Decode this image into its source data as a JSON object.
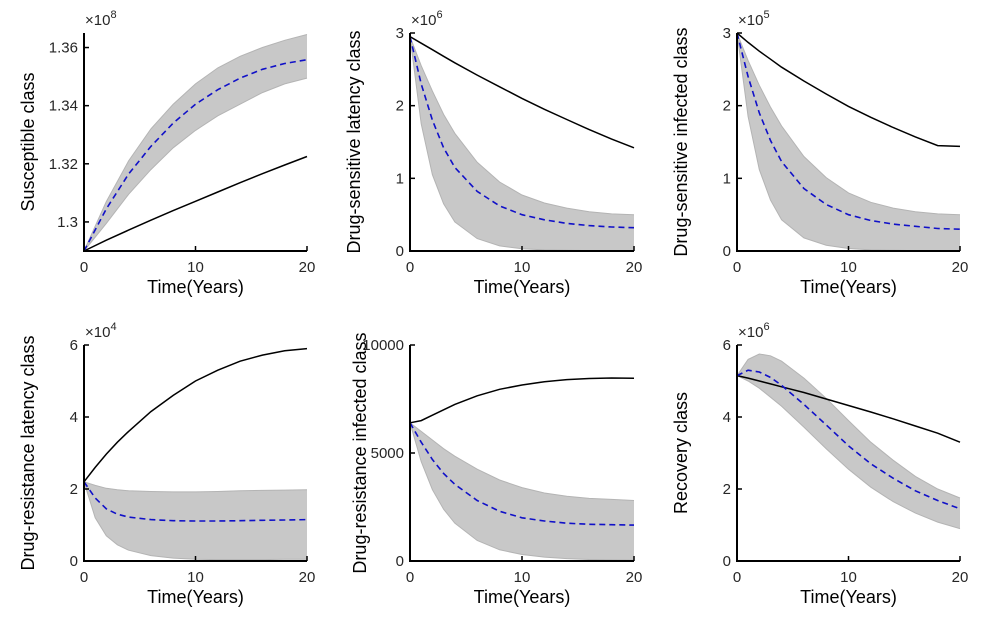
{
  "colors": {
    "band": "#c8c8c8",
    "band_edge": "#b4b4b4",
    "mean": "#1010c8",
    "baseline": "#000000",
    "axis": "#000000",
    "text": "#262626"
  },
  "chart_data": [
    {
      "type": "line",
      "xlabel": "Time(Years)",
      "ylabel": "Susceptible class",
      "xlim": [
        0,
        20
      ],
      "ylim": [
        1.29,
        1.365
      ],
      "xticks": [
        0,
        10,
        20
      ],
      "xtick_labels": [
        "0",
        "10",
        "20"
      ],
      "yticks": [
        1.3,
        1.32,
        1.34,
        1.36
      ],
      "ytick_labels": [
        "1.3",
        "1.32",
        "1.34",
        "1.36"
      ],
      "multiplier_base": "×10",
      "multiplier_exp": "8",
      "x": [
        0,
        2,
        4,
        6,
        8,
        10,
        12,
        14,
        16,
        18,
        20
      ],
      "series": [
        {
          "role": "baseline",
          "style": "solid-black",
          "values": [
            1.29,
            1.2937,
            1.2972,
            1.3006,
            1.3039,
            1.3071,
            1.3103,
            1.3135,
            1.3166,
            1.3196,
            1.3225
          ]
        },
        {
          "role": "mean",
          "style": "dashed-blue",
          "values": [
            1.29,
            1.3045,
            1.3165,
            1.326,
            1.334,
            1.3405,
            1.3455,
            1.3495,
            1.3525,
            1.3545,
            1.3558
          ]
        },
        {
          "role": "band-lower",
          "style": "gray-band",
          "values": [
            1.29,
            1.2995,
            1.3095,
            1.318,
            1.3255,
            1.3315,
            1.3365,
            1.3405,
            1.3445,
            1.3475,
            1.3495
          ]
        },
        {
          "role": "band-upper",
          "style": "gray-band",
          "values": [
            1.29,
            1.307,
            1.321,
            1.332,
            1.3405,
            1.3475,
            1.353,
            1.357,
            1.36,
            1.3625,
            1.3645
          ]
        }
      ]
    },
    {
      "type": "line",
      "xlabel": "Time(Years)",
      "ylabel": "Drug-sensitive latency class",
      "xlim": [
        0,
        20
      ],
      "ylim": [
        0,
        3
      ],
      "xticks": [
        0,
        10,
        20
      ],
      "xtick_labels": [
        "0",
        "10",
        "20"
      ],
      "yticks": [
        0,
        1,
        2,
        3
      ],
      "ytick_labels": [
        "0",
        "1",
        "2",
        "3"
      ],
      "multiplier_base": "×10",
      "multiplier_exp": "6",
      "x": [
        0,
        1,
        2,
        3,
        4,
        6,
        8,
        10,
        12,
        14,
        16,
        18,
        20
      ],
      "series": [
        {
          "role": "baseline",
          "style": "solid-black",
          "values": [
            2.95,
            2.86,
            2.77,
            2.68,
            2.59,
            2.42,
            2.26,
            2.1,
            1.95,
            1.81,
            1.67,
            1.54,
            1.42
          ]
        },
        {
          "role": "mean",
          "style": "dashed-blue",
          "values": [
            2.95,
            2.3,
            1.8,
            1.42,
            1.15,
            0.82,
            0.62,
            0.5,
            0.43,
            0.38,
            0.35,
            0.33,
            0.32
          ]
        },
        {
          "role": "band-lower",
          "style": "gray-band",
          "values": [
            2.95,
            1.75,
            1.05,
            0.65,
            0.4,
            0.17,
            0.07,
            0.03,
            0.015,
            0.01,
            0.005,
            0.003,
            0.002
          ]
        },
        {
          "role": "band-upper",
          "style": "gray-band",
          "values": [
            2.95,
            2.55,
            2.2,
            1.88,
            1.62,
            1.22,
            0.95,
            0.77,
            0.66,
            0.59,
            0.54,
            0.51,
            0.5
          ]
        }
      ]
    },
    {
      "type": "line",
      "xlabel": "Time(Years)",
      "ylabel": "Drug-sensitive infected class",
      "xlim": [
        0,
        20
      ],
      "ylim": [
        0,
        3
      ],
      "xticks": [
        0,
        10,
        20
      ],
      "xtick_labels": [
        "0",
        "10",
        "20"
      ],
      "yticks": [
        0,
        1,
        2,
        3
      ],
      "ytick_labels": [
        "0",
        "1",
        "2",
        "3"
      ],
      "multiplier_base": "×10",
      "multiplier_exp": "5",
      "x": [
        0,
        1,
        2,
        3,
        4,
        6,
        8,
        10,
        12,
        14,
        16,
        18,
        20
      ],
      "series": [
        {
          "role": "baseline",
          "style": "solid-black",
          "values": [
            3.0,
            2.87,
            2.75,
            2.64,
            2.53,
            2.34,
            2.16,
            1.99,
            1.84,
            1.7,
            1.57,
            1.45,
            1.44
          ]
        },
        {
          "role": "mean",
          "style": "dashed-blue",
          "values": [
            3.0,
            2.4,
            1.9,
            1.52,
            1.23,
            0.86,
            0.64,
            0.5,
            0.42,
            0.37,
            0.34,
            0.31,
            0.3
          ]
        },
        {
          "role": "band-lower",
          "style": "gray-band",
          "values": [
            3.0,
            1.85,
            1.12,
            0.7,
            0.43,
            0.18,
            0.08,
            0.035,
            0.015,
            0.01,
            0.005,
            0.003,
            0.002
          ]
        },
        {
          "role": "band-upper",
          "style": "gray-band",
          "values": [
            3.0,
            2.62,
            2.28,
            1.98,
            1.72,
            1.3,
            1.01,
            0.8,
            0.67,
            0.59,
            0.54,
            0.51,
            0.5
          ]
        }
      ]
    },
    {
      "type": "line",
      "xlabel": "Time(Years)",
      "ylabel": "Drug-resistance latency class",
      "xlim": [
        0,
        20
      ],
      "ylim": [
        0,
        6
      ],
      "xticks": [
        0,
        10,
        20
      ],
      "xtick_labels": [
        "0",
        "10",
        "20"
      ],
      "yticks": [
        0,
        2,
        4,
        6
      ],
      "ytick_labels": [
        "0",
        "2",
        "4",
        "6"
      ],
      "multiplier_base": "×10",
      "multiplier_exp": "4",
      "x": [
        0,
        1,
        2,
        3,
        4,
        6,
        8,
        10,
        12,
        14,
        16,
        18,
        20
      ],
      "series": [
        {
          "role": "baseline",
          "style": "solid-black",
          "values": [
            2.2,
            2.6,
            2.97,
            3.3,
            3.6,
            4.15,
            4.6,
            5.0,
            5.3,
            5.55,
            5.72,
            5.84,
            5.9
          ]
        },
        {
          "role": "mean",
          "style": "dashed-blue",
          "values": [
            2.2,
            1.75,
            1.45,
            1.3,
            1.22,
            1.15,
            1.12,
            1.11,
            1.11,
            1.12,
            1.13,
            1.14,
            1.15
          ]
        },
        {
          "role": "band-lower",
          "style": "gray-band",
          "values": [
            2.2,
            1.2,
            0.7,
            0.45,
            0.3,
            0.15,
            0.08,
            0.05,
            0.04,
            0.04,
            0.04,
            0.05,
            0.05
          ]
        },
        {
          "role": "band-upper",
          "style": "gray-band",
          "values": [
            2.2,
            2.1,
            2.02,
            1.98,
            1.95,
            1.93,
            1.92,
            1.92,
            1.93,
            1.95,
            1.96,
            1.97,
            1.98
          ]
        }
      ]
    },
    {
      "type": "line",
      "xlabel": "Time(Years)",
      "ylabel": "Drug-resistance infected class",
      "xlim": [
        0,
        20
      ],
      "ylim": [
        0,
        10000
      ],
      "xticks": [
        0,
        10,
        20
      ],
      "xtick_labels": [
        "0",
        "10",
        "20"
      ],
      "yticks": [
        0,
        5000,
        10000
      ],
      "ytick_labels": [
        "0",
        "5000",
        "10000"
      ],
      "multiplier_base": "",
      "multiplier_exp": "",
      "x": [
        0,
        1,
        2,
        3,
        4,
        6,
        8,
        10,
        12,
        14,
        16,
        18,
        20
      ],
      "series": [
        {
          "role": "baseline",
          "style": "solid-black",
          "values": [
            6400,
            6500,
            6750,
            7000,
            7250,
            7650,
            7950,
            8150,
            8300,
            8400,
            8450,
            8470,
            8460
          ]
        },
        {
          "role": "mean",
          "style": "dashed-blue",
          "values": [
            6400,
            5500,
            4700,
            4050,
            3550,
            2800,
            2300,
            2000,
            1850,
            1750,
            1700,
            1680,
            1660
          ]
        },
        {
          "role": "band-lower",
          "style": "gray-band",
          "values": [
            6400,
            4600,
            3300,
            2400,
            1750,
            950,
            520,
            300,
            180,
            110,
            70,
            50,
            40
          ]
        },
        {
          "role": "band-upper",
          "style": "gray-band",
          "values": [
            6400,
            6000,
            5600,
            5200,
            4850,
            4250,
            3750,
            3400,
            3150,
            3000,
            2900,
            2850,
            2800
          ]
        }
      ]
    },
    {
      "type": "line",
      "xlabel": "Time(Years)",
      "ylabel": "Recovery class",
      "xlim": [
        0,
        20
      ],
      "ylim": [
        0,
        6
      ],
      "xticks": [
        0,
        10,
        20
      ],
      "xtick_labels": [
        "0",
        "10",
        "20"
      ],
      "yticks": [
        0,
        2,
        4,
        6
      ],
      "ytick_labels": [
        "0",
        "2",
        "4",
        "6"
      ],
      "multiplier_base": "×10",
      "multiplier_exp": "6",
      "x": [
        0,
        1,
        2,
        3,
        4,
        6,
        8,
        10,
        12,
        14,
        16,
        18,
        20
      ],
      "series": [
        {
          "role": "baseline",
          "style": "solid-black",
          "values": [
            5.15,
            5.08,
            5.0,
            4.92,
            4.84,
            4.68,
            4.5,
            4.32,
            4.14,
            3.95,
            3.75,
            3.55,
            3.3
          ]
        },
        {
          "role": "mean",
          "style": "dashed-blue",
          "values": [
            5.15,
            5.3,
            5.25,
            5.1,
            4.88,
            4.35,
            3.78,
            3.2,
            2.7,
            2.3,
            1.95,
            1.68,
            1.45
          ]
        },
        {
          "role": "band-lower",
          "style": "gray-band",
          "values": [
            5.15,
            5.0,
            4.8,
            4.55,
            4.3,
            3.72,
            3.12,
            2.55,
            2.05,
            1.65,
            1.33,
            1.08,
            0.9
          ]
        },
        {
          "role": "band-upper",
          "style": "gray-band",
          "values": [
            5.15,
            5.6,
            5.75,
            5.7,
            5.55,
            5.08,
            4.52,
            3.9,
            3.3,
            2.8,
            2.35,
            2.0,
            1.75
          ]
        }
      ]
    }
  ]
}
